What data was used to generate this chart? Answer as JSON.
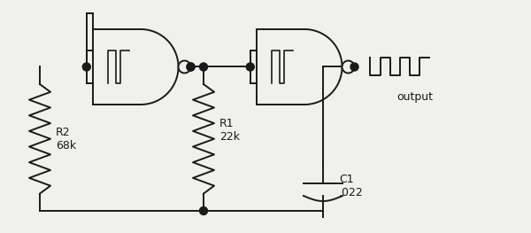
{
  "background_color": "#f0f0ec",
  "line_color": "#1a1a1a",
  "label_r2": "R2\n68k",
  "label_r1": "R1\n22k",
  "label_c1": "C1\n.022",
  "label_output": "output",
  "figw": 6.0,
  "figh": 2.63,
  "dpi": 100
}
